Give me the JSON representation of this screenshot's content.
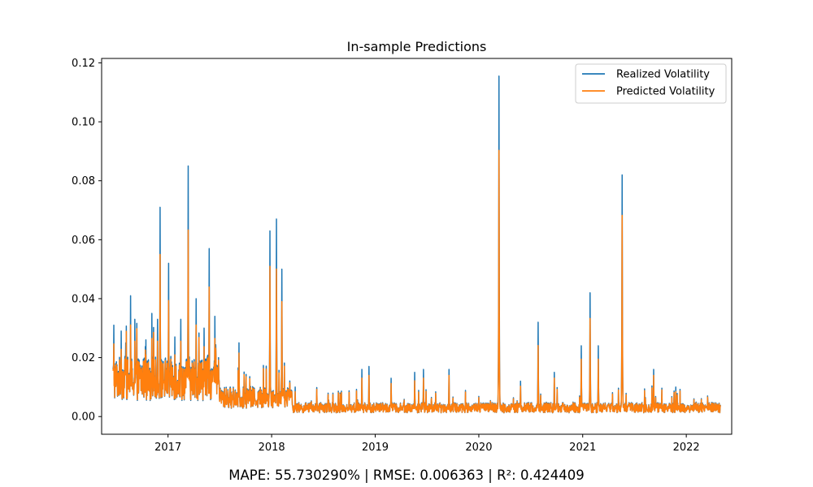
{
  "chart_data": {
    "type": "line",
    "title": "In-sample Predictions",
    "xlabel": "",
    "ylabel": "",
    "x_range": [
      "2016-06-21",
      "2022-05-01"
    ],
    "xlim": [
      "2016-05-12",
      "2022-06-10"
    ],
    "ylim": [
      -0.006,
      0.1215
    ],
    "x_ticks": [
      "2017",
      "2018",
      "2019",
      "2020",
      "2021",
      "2022"
    ],
    "y_ticks": [
      "0.00",
      "0.02",
      "0.04",
      "0.06",
      "0.08",
      "0.10",
      "0.12"
    ],
    "grid": false,
    "legend_placement": "top-right",
    "series": [
      {
        "name": "Realized Volatility",
        "color": "#1f77b4",
        "peaks": [
          [
            "2016-06-24",
            0.031
          ],
          [
            "2016-07-20",
            0.029
          ],
          [
            "2016-08-05",
            0.025
          ],
          [
            "2016-08-22",
            0.041
          ],
          [
            "2016-09-06",
            0.033
          ],
          [
            "2016-10-15",
            0.026
          ],
          [
            "2016-11-05",
            0.035
          ],
          [
            "2016-11-25",
            0.033
          ],
          [
            "2016-12-04",
            0.071
          ],
          [
            "2017-01-03",
            0.052
          ],
          [
            "2017-01-25",
            0.027
          ],
          [
            "2017-02-15",
            0.033
          ],
          [
            "2017-03-13",
            0.085
          ],
          [
            "2017-04-10",
            0.04
          ],
          [
            "2017-05-08",
            0.03
          ],
          [
            "2017-05-26",
            0.057
          ],
          [
            "2017-06-15",
            0.034
          ],
          [
            "2017-09-08",
            0.025
          ],
          [
            "2017-12-26",
            0.063
          ],
          [
            "2018-01-18",
            0.067
          ],
          [
            "2018-02-06",
            0.05
          ],
          [
            "2018-03-25",
            0.01
          ],
          [
            "2018-11-15",
            0.016
          ],
          [
            "2018-12-10",
            0.017
          ],
          [
            "2019-02-26",
            0.013
          ],
          [
            "2019-05-20",
            0.015
          ],
          [
            "2019-06-20",
            0.016
          ],
          [
            "2019-09-18",
            0.016
          ],
          [
            "2020-03-12",
            0.1155
          ],
          [
            "2020-05-27",
            0.012
          ],
          [
            "2020-07-28",
            0.032
          ],
          [
            "2020-09-23",
            0.015
          ],
          [
            "2020-12-27",
            0.024
          ],
          [
            "2021-01-27",
            0.042
          ],
          [
            "2021-02-25",
            0.024
          ],
          [
            "2021-05-20",
            0.082
          ],
          [
            "2021-09-08",
            0.016
          ],
          [
            "2021-11-25",
            0.01
          ]
        ]
      },
      {
        "name": "Predicted Volatility",
        "color": "#ff7f0e",
        "peaks": [
          [
            "2016-06-24",
            0.026
          ],
          [
            "2016-07-20",
            0.024
          ],
          [
            "2016-08-05",
            0.021
          ],
          [
            "2016-08-22",
            0.033
          ],
          [
            "2016-09-06",
            0.027
          ],
          [
            "2016-10-15",
            0.022
          ],
          [
            "2016-11-05",
            0.028
          ],
          [
            "2016-11-25",
            0.027
          ],
          [
            "2016-12-04",
            0.059
          ],
          [
            "2017-01-03",
            0.042
          ],
          [
            "2017-01-25",
            0.022
          ],
          [
            "2017-02-15",
            0.027
          ],
          [
            "2017-03-13",
            0.068
          ],
          [
            "2017-04-10",
            0.033
          ],
          [
            "2017-05-08",
            0.025
          ],
          [
            "2017-05-26",
            0.047
          ],
          [
            "2017-06-15",
            0.028
          ],
          [
            "2017-09-08",
            0.023
          ],
          [
            "2017-12-26",
            0.055
          ],
          [
            "2018-01-18",
            0.054
          ],
          [
            "2018-02-06",
            0.042
          ],
          [
            "2018-03-25",
            0.009
          ],
          [
            "2018-11-15",
            0.014
          ],
          [
            "2018-12-10",
            0.015
          ],
          [
            "2019-02-26",
            0.012
          ],
          [
            "2019-05-20",
            0.013
          ],
          [
            "2019-06-20",
            0.014
          ],
          [
            "2019-09-18",
            0.015
          ],
          [
            "2020-03-12",
            0.098
          ],
          [
            "2020-05-27",
            0.011
          ],
          [
            "2020-07-28",
            0.026
          ],
          [
            "2020-09-23",
            0.014
          ],
          [
            "2020-12-27",
            0.021
          ],
          [
            "2021-01-27",
            0.036
          ],
          [
            "2021-02-25",
            0.021
          ],
          [
            "2021-05-20",
            0.074
          ],
          [
            "2021-09-08",
            0.015
          ],
          [
            "2021-11-25",
            0.009
          ]
        ]
      }
    ]
  },
  "footer": {
    "metrics": "MAPE: 55.730290% | RMSE: 0.006363 | R²: 0.424409"
  }
}
